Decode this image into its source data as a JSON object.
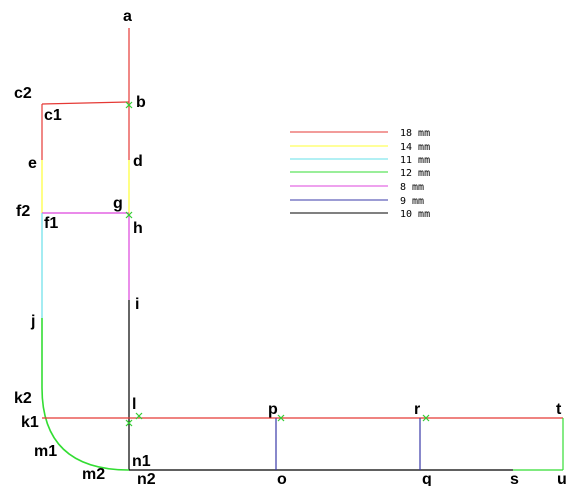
{
  "colors": {
    "red": "#e53935",
    "yellow": "#ffff33",
    "cyan": "#66e0e8",
    "green": "#33dd33",
    "magenta": "#dd44dd",
    "blue": "#3a3aa8",
    "black": "#000000",
    "marker": "#33cc33"
  },
  "labels": {
    "a": "a",
    "b": "b",
    "c1": "c1",
    "c2": "c2",
    "d": "d",
    "e": "e",
    "f1": "f1",
    "f2": "f2",
    "g": "g",
    "h": "h",
    "i": "i",
    "j": "j",
    "k1": "k1",
    "k2": "k2",
    "l": "l",
    "m1": "m1",
    "m2": "m2",
    "n1": "n1",
    "n2": "n2",
    "o": "o",
    "p": "p",
    "q": "q",
    "r": "r",
    "s": "s",
    "t": "t",
    "u": "u"
  },
  "legend": [
    {
      "label": "18  mm",
      "color": "red"
    },
    {
      "label": "14  mm",
      "color": "yellow"
    },
    {
      "label": "11  mm",
      "color": "cyan"
    },
    {
      "label": "12  mm",
      "color": "green"
    },
    {
      "label": "8  mm",
      "color": "magenta"
    },
    {
      "label": "9  mm",
      "color": "blue"
    },
    {
      "label": "10  mm",
      "color": "black"
    }
  ]
}
